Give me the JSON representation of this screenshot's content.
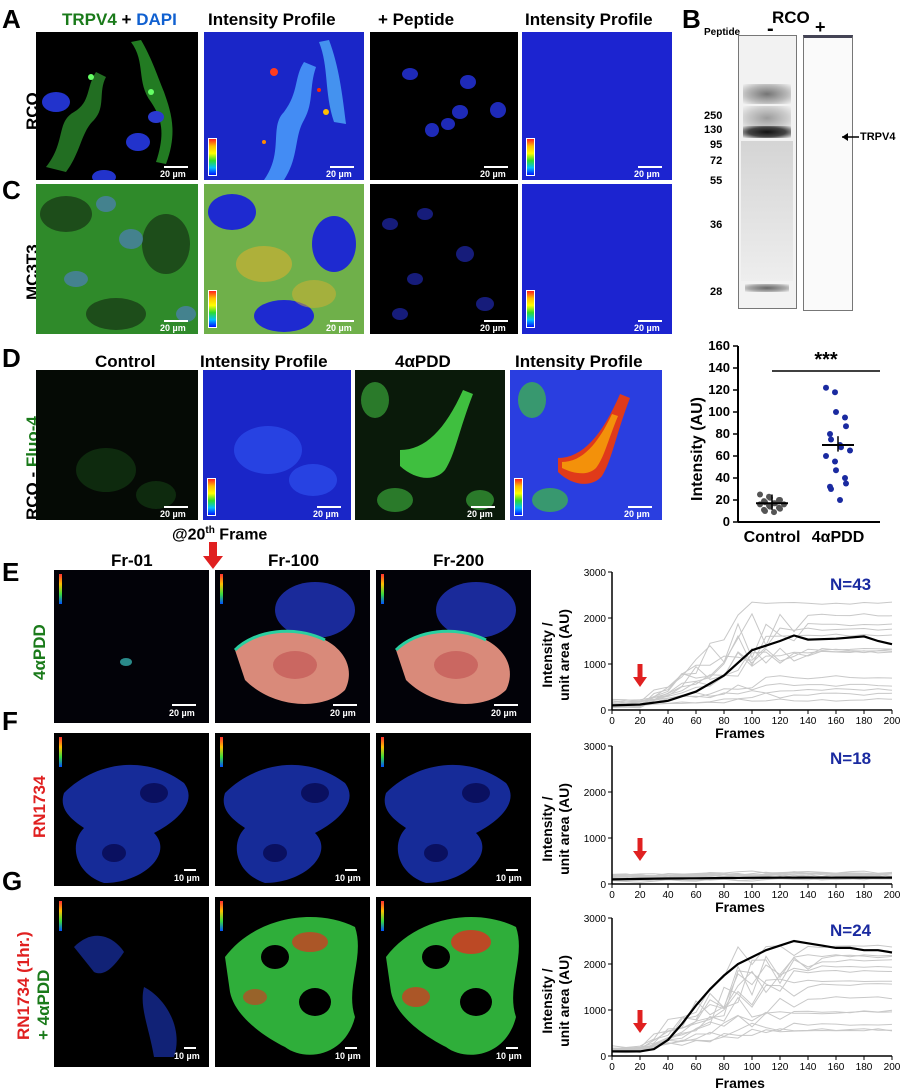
{
  "panels": {
    "A": "A",
    "B": "B",
    "C": "C",
    "D": "D",
    "E": "E",
    "F": "F",
    "G": "G"
  },
  "rowA": {
    "titles": {
      "t1a": "TRPV4",
      "t1b": "+",
      "t1c": "DAPI",
      "t2": "Intensity Profile",
      "t3": "+ Peptide",
      "t4": "Intensity Profile"
    },
    "row_label": "RCO"
  },
  "rowC": {
    "row_label": "MC3T3"
  },
  "rowD": {
    "titles": {
      "t1": "Control",
      "t2": "Intensity Profile",
      "t3": "4αPDD",
      "t4": "Intensity Profile"
    },
    "row_label_a": "RCO - ",
    "row_label_b": "Fluo-4"
  },
  "scale": {
    "s20": "20 µm",
    "s10": "10 µm"
  },
  "blot": {
    "title": "RCO",
    "peptide_label": "Peptide",
    "lanes": [
      "-",
      "+"
    ],
    "markers": [
      "250",
      "130",
      "95",
      "72",
      "55",
      "36",
      "28"
    ],
    "band_label": "TRPV4"
  },
  "dotplot": {
    "ylabel": "Intensity (AU)",
    "yticks": [
      "0",
      "20",
      "40",
      "60",
      "80",
      "100",
      "120",
      "140",
      "160"
    ],
    "categories": [
      "Control",
      "4αPDD"
    ],
    "significance": "***"
  },
  "timelapse": {
    "event_a": "@20",
    "event_sup": "th",
    "event_b": " Frame",
    "frames": [
      "Fr-01",
      "Fr-100",
      "Fr-200"
    ]
  },
  "rowE": {
    "row_label": "4αPDD",
    "n": "N=43"
  },
  "rowF": {
    "row_label": "RN1734",
    "n": "N=18"
  },
  "rowG": {
    "row_label_a": "RN1734 (1hr.)",
    "row_label_b": "+ 4αPDD",
    "n": "N=24"
  },
  "traces": {
    "ylabel_a": "Intensity /",
    "ylabel_b": "unit area (AU)",
    "xlabel": "Frames",
    "yticks": [
      "0",
      "1000",
      "2000",
      "3000"
    ],
    "xticks": [
      "0",
      "20",
      "40",
      "60",
      "80",
      "100",
      "120",
      "140",
      "160",
      "180",
      "200"
    ]
  },
  "colors": {
    "green": "#1a7a1a",
    "blue": "#1060d0",
    "red": "#e02020",
    "navy": "#1a2aa0"
  },
  "chart_data": [
    {
      "type": "scatter",
      "title": "",
      "xlabel": "",
      "ylabel": "Intensity (AU)",
      "ylim": [
        0,
        160
      ],
      "categories": [
        "Control",
        "4αPDD"
      ],
      "series": [
        {
          "name": "Control",
          "values": [
            25,
            23,
            22,
            20,
            20,
            19,
            18,
            17,
            17,
            16,
            16,
            15,
            14,
            13,
            12,
            11,
            10,
            9
          ],
          "mean": 17
        },
        {
          "name": "4αPDD",
          "values": [
            122,
            118,
            100,
            95,
            87,
            80,
            75,
            70,
            68,
            65,
            60,
            55,
            47,
            40,
            35,
            32,
            30,
            20
          ],
          "mean": 70
        }
      ],
      "annotations": [
        "***"
      ]
    },
    {
      "type": "line",
      "title": "",
      "xlabel": "Frames",
      "ylabel": "Intensity / unit area (AU)",
      "xlim": [
        0,
        200
      ],
      "ylim": [
        0,
        3000
      ],
      "annotations": [
        "N=43"
      ],
      "series": [
        {
          "name": "",
          "x": [
            0,
            20,
            40,
            60,
            80,
            100,
            120,
            130,
            140,
            160,
            180,
            190,
            200
          ],
          "values": [
            100,
            120,
            200,
            400,
            750,
            1300,
            1500,
            1620,
            1530,
            1550,
            1600,
            1500,
            1430
          ]
        }
      ]
    },
    {
      "type": "line",
      "title": "",
      "xlabel": "Frames",
      "ylabel": "Intensity / unit area (AU)",
      "xlim": [
        0,
        200
      ],
      "ylim": [
        0,
        3000
      ],
      "annotations": [
        "N=18"
      ],
      "series": [
        {
          "name": "",
          "x": [
            0,
            20,
            40,
            60,
            80,
            100,
            120,
            140,
            160,
            180,
            200
          ],
          "values": [
            100,
            110,
            120,
            125,
            130,
            135,
            140,
            140,
            140,
            140,
            140
          ]
        }
      ]
    },
    {
      "type": "line",
      "title": "",
      "xlabel": "Frames",
      "ylabel": "Intensity / unit area (AU)",
      "xlim": [
        0,
        200
      ],
      "ylim": [
        0,
        3000
      ],
      "annotations": [
        "N=24"
      ],
      "series": [
        {
          "name": "",
          "x": [
            0,
            20,
            30,
            40,
            50,
            60,
            70,
            80,
            90,
            100,
            110,
            120,
            130,
            140,
            150,
            160,
            170,
            180,
            190,
            200
          ],
          "values": [
            100,
            100,
            150,
            350,
            700,
            1100,
            1450,
            1750,
            2000,
            2150,
            2300,
            2400,
            2500,
            2450,
            2400,
            2350,
            2350,
            2300,
            2300,
            2250
          ]
        }
      ]
    }
  ]
}
